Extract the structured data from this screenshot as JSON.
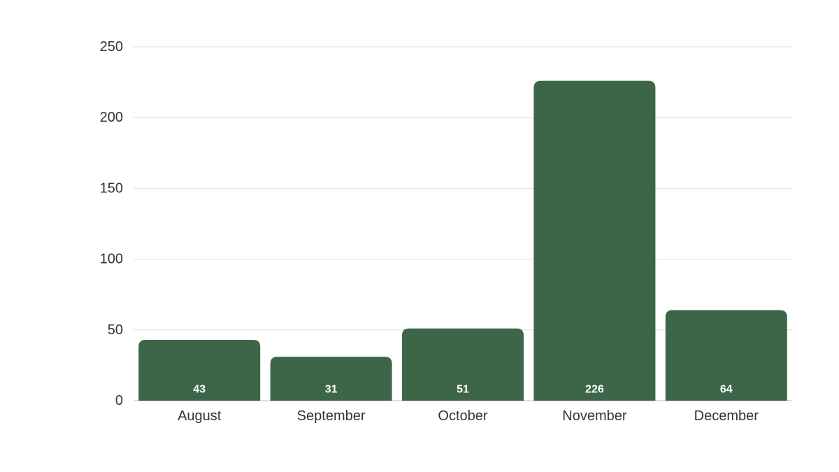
{
  "chart_data": {
    "type": "bar",
    "title": "",
    "xlabel": "",
    "ylabel": "",
    "categories": [
      "August",
      "September",
      "October",
      "November",
      "December"
    ],
    "values": [
      43,
      31,
      51,
      226,
      64
    ],
    "data_labels": [
      "43",
      "31",
      "51",
      "226",
      "64"
    ],
    "ylim": [
      0,
      250
    ],
    "yticks": [
      0,
      50,
      100,
      150,
      200,
      250
    ],
    "ytick_labels": [
      "0",
      "50",
      "100",
      "150",
      "200",
      "250"
    ],
    "grid": true,
    "legend": "none",
    "bar_color": "#3d6649",
    "data_label_color": "#ffffff"
  }
}
